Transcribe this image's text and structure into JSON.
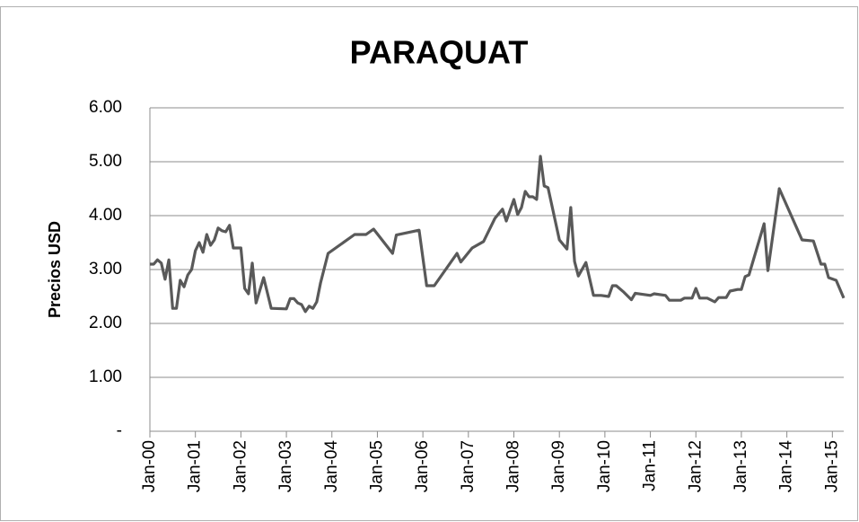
{
  "chart_data": {
    "type": "line",
    "title": "PARAQUAT",
    "y_label": "Precios USD",
    "grid": true,
    "ylim": [
      0,
      6
    ],
    "yticks": [
      {
        "value": 0,
        "label": "-"
      },
      {
        "value": 1,
        "label": "1.00"
      },
      {
        "value": 2,
        "label": "2.00"
      },
      {
        "value": 3,
        "label": "3.00"
      },
      {
        "value": 4,
        "label": "4.00"
      },
      {
        "value": 5,
        "label": "5.00"
      },
      {
        "value": 6,
        "label": "6.00"
      }
    ],
    "xlim": [
      "2000-01",
      "2015-04"
    ],
    "xticks": [
      {
        "value": "2000-01",
        "label": "Jan-00"
      },
      {
        "value": "2001-01",
        "label": "Jan-01"
      },
      {
        "value": "2002-01",
        "label": "Jan-02"
      },
      {
        "value": "2003-01",
        "label": "Jan-03"
      },
      {
        "value": "2004-01",
        "label": "Jan-04"
      },
      {
        "value": "2005-01",
        "label": "Jan-05"
      },
      {
        "value": "2006-01",
        "label": "Jan-06"
      },
      {
        "value": "2007-01",
        "label": "Jan-07"
      },
      {
        "value": "2008-01",
        "label": "Jan-08"
      },
      {
        "value": "2009-01",
        "label": "Jan-09"
      },
      {
        "value": "2010-01",
        "label": "Jan-10"
      },
      {
        "value": "2011-01",
        "label": "Jan-11"
      },
      {
        "value": "2012-01",
        "label": "Jan-12"
      },
      {
        "value": "2013-01",
        "label": "Jan-13"
      },
      {
        "value": "2014-01",
        "label": "Jan-14"
      },
      {
        "value": "2015-01",
        "label": "Jan-15"
      }
    ],
    "series": [
      {
        "color": "#595959",
        "x": [
          "2000-01",
          "2000-02",
          "2000-03",
          "2000-04",
          "2000-05",
          "2000-06",
          "2000-07",
          "2000-08",
          "2000-09",
          "2000-10",
          "2000-11",
          "2000-12",
          "2001-01",
          "2001-02",
          "2001-03",
          "2001-04",
          "2001-05",
          "2001-06",
          "2001-07",
          "2001-08",
          "2001-09",
          "2001-10",
          "2001-11",
          "2002-01",
          "2002-02",
          "2002-03",
          "2002-04",
          "2002-05",
          "2002-07",
          "2002-09",
          "2003-01",
          "2003-02",
          "2003-03",
          "2003-04",
          "2003-05",
          "2003-06",
          "2003-07",
          "2003-08",
          "2003-09",
          "2003-10",
          "2003-12",
          "2004-07",
          "2004-10",
          "2004-12",
          "2005-05",
          "2005-06",
          "2005-12",
          "2006-02",
          "2006-04",
          "2006-10",
          "2006-11",
          "2007-02",
          "2007-05",
          "2007-08",
          "2007-10",
          "2007-11",
          "2008-01",
          "2008-02",
          "2008-03",
          "2008-04",
          "2008-05",
          "2008-06",
          "2008-07",
          "2008-08",
          "2008-09",
          "2008-10",
          "2009-01",
          "2009-03",
          "2009-04",
          "2009-05",
          "2009-06",
          "2009-08",
          "2009-10",
          "2009-12",
          "2010-02",
          "2010-03",
          "2010-04",
          "2010-06",
          "2010-08",
          "2010-09",
          "2011-01",
          "2011-02",
          "2011-05",
          "2011-06",
          "2011-09",
          "2011-10",
          "2011-12",
          "2012-01",
          "2012-02",
          "2012-04",
          "2012-06",
          "2012-07",
          "2012-09",
          "2012-10",
          "2012-12",
          "2013-01",
          "2013-02",
          "2013-03",
          "2013-07",
          "2013-08",
          "2013-11",
          "2014-05",
          "2014-08",
          "2014-10",
          "2014-11",
          "2014-12",
          "2015-02",
          "2015-04"
        ],
        "values": [
          3.1,
          3.1,
          3.18,
          3.12,
          2.82,
          3.18,
          2.28,
          2.28,
          2.8,
          2.68,
          2.9,
          3.0,
          3.35,
          3.5,
          3.32,
          3.65,
          3.45,
          3.55,
          3.77,
          3.72,
          3.7,
          3.82,
          3.4,
          3.4,
          2.65,
          2.55,
          3.12,
          2.38,
          2.85,
          2.28,
          2.27,
          2.46,
          2.46,
          2.38,
          2.35,
          2.22,
          2.32,
          2.28,
          2.4,
          2.75,
          3.3,
          3.65,
          3.65,
          3.75,
          3.3,
          3.64,
          3.73,
          2.7,
          2.7,
          3.3,
          3.14,
          3.4,
          3.52,
          3.95,
          4.12,
          3.9,
          4.3,
          4.02,
          4.15,
          4.45,
          4.35,
          4.35,
          4.3,
          5.1,
          4.55,
          4.52,
          3.55,
          3.38,
          4.15,
          3.15,
          2.88,
          3.13,
          2.52,
          2.52,
          2.5,
          2.7,
          2.7,
          2.58,
          2.44,
          2.56,
          2.52,
          2.55,
          2.52,
          2.43,
          2.43,
          2.47,
          2.47,
          2.65,
          2.47,
          2.47,
          2.4,
          2.48,
          2.48,
          2.6,
          2.63,
          2.63,
          2.87,
          2.9,
          3.85,
          2.98,
          4.5,
          3.55,
          3.53,
          3.1,
          3.1,
          2.85,
          2.8,
          2.47
        ]
      }
    ]
  }
}
